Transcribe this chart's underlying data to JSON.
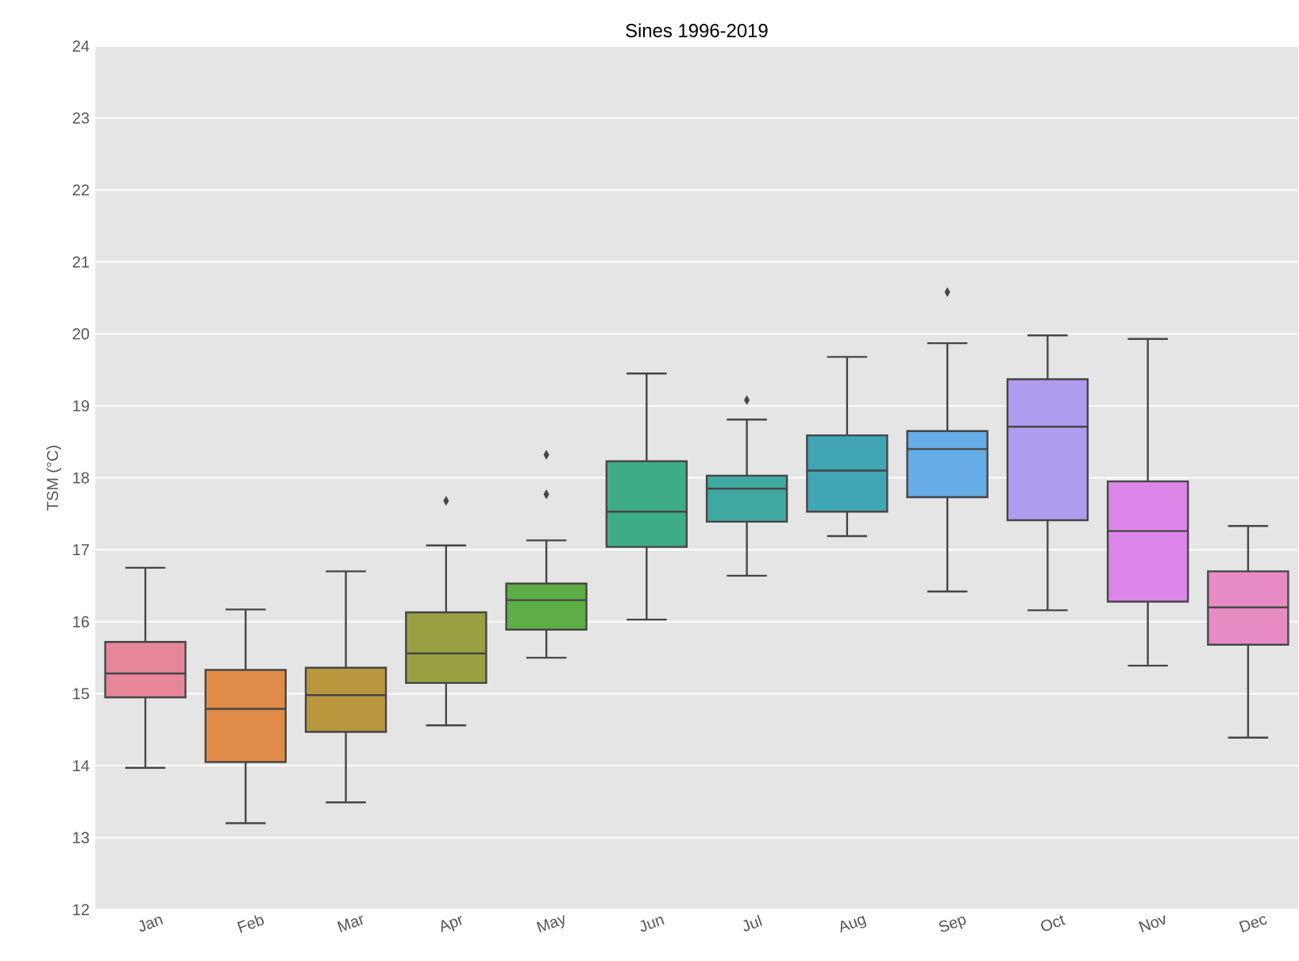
{
  "chart_data": {
    "type": "box",
    "title": "Sines 1996-2019",
    "ylabel": "TSM (°C)",
    "categories": [
      "Jan",
      "Feb",
      "Mar",
      "Apr",
      "May",
      "Jun",
      "Jul",
      "Aug",
      "Sep",
      "Oct",
      "Nov",
      "Dec"
    ],
    "boxes": [
      {
        "low": 13.97,
        "q1": 14.95,
        "median": 15.28,
        "q3": 15.72,
        "high": 16.75
      },
      {
        "low": 13.2,
        "q1": 14.05,
        "median": 14.79,
        "q3": 15.33,
        "high": 16.17
      },
      {
        "low": 13.49,
        "q1": 14.47,
        "median": 14.98,
        "q3": 15.36,
        "high": 16.7
      },
      {
        "low": 14.56,
        "q1": 15.15,
        "median": 15.56,
        "q3": 16.13,
        "high": 17.06,
        "outliers": [
          17.68
        ]
      },
      {
        "low": 15.5,
        "q1": 15.89,
        "median": 16.3,
        "q3": 16.53,
        "high": 17.13,
        "outliers": [
          17.77,
          18.32
        ]
      },
      {
        "low": 16.03,
        "q1": 17.04,
        "median": 17.53,
        "q3": 18.23,
        "high": 19.45
      },
      {
        "low": 16.64,
        "q1": 17.39,
        "median": 17.85,
        "q3": 18.03,
        "high": 18.81,
        "outliers": [
          19.08
        ]
      },
      {
        "low": 17.19,
        "q1": 17.53,
        "median": 18.1,
        "q3": 18.59,
        "high": 19.68
      },
      {
        "low": 16.42,
        "q1": 17.73,
        "median": 18.4,
        "q3": 18.65,
        "high": 19.87,
        "outliers": [
          20.58
        ]
      },
      {
        "low": 16.16,
        "q1": 17.41,
        "median": 18.71,
        "q3": 19.37,
        "high": 19.98
      },
      {
        "low": 15.39,
        "q1": 16.28,
        "median": 17.26,
        "q3": 17.95,
        "high": 19.93
      },
      {
        "low": 14.39,
        "q1": 15.68,
        "median": 16.2,
        "q3": 16.7,
        "high": 17.33
      }
    ],
    "colors": [
      "#e8879a",
      "#e08c48",
      "#b8973e",
      "#98a042",
      "#5cae45",
      "#3ead87",
      "#3fa89f",
      "#40a5b4",
      "#66ace6",
      "#b09cef",
      "#dd86e9",
      "#e78bc4"
    ],
    "ylim": [
      12,
      24
    ],
    "yticks": [
      12,
      13,
      14,
      15,
      16,
      17,
      18,
      19,
      20,
      21,
      22,
      23,
      24
    ],
    "grid": "y",
    "marker": "diamond"
  }
}
